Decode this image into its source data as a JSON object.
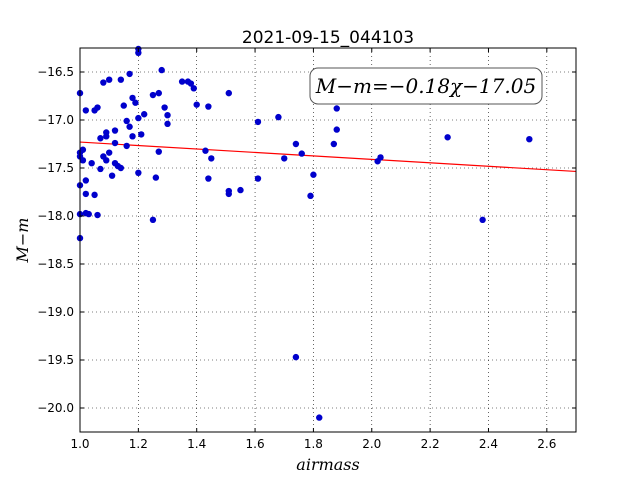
{
  "chart_data": {
    "type": "scatter",
    "title": "2021-09-15_044103",
    "xlabel": "airmass",
    "ylabel": "M−m",
    "xlim": [
      1.0,
      2.7
    ],
    "ylim": [
      -20.25,
      -16.25
    ],
    "y_inverted": true,
    "grid": true,
    "xticks": [
      1.0,
      1.2,
      1.4,
      1.6,
      1.8,
      2.0,
      2.2,
      2.4,
      2.6
    ],
    "xtick_labels": [
      "1.0",
      "1.2",
      "1.4",
      "1.6",
      "1.8",
      "2.0",
      "2.2",
      "2.4",
      "2.6"
    ],
    "yticks": [
      -16.5,
      -17.0,
      -17.5,
      -18.0,
      -18.5,
      -19.0,
      -19.5,
      -20.0
    ],
    "ytick_labels": [
      "−16.5",
      "−17.0",
      "−17.5",
      "−18.0",
      "−18.5",
      "−19.0",
      "−19.5",
      "−20.0"
    ],
    "annotation": "M−m=−0.18χ−17.05",
    "fit": {
      "slope": -0.18,
      "intercept": -17.05,
      "color": "#ff0000"
    },
    "point_color": "#0000cc",
    "points": [
      [
        1.0,
        -16.72
      ],
      [
        1.0,
        -17.34
      ],
      [
        1.0,
        -17.38
      ],
      [
        1.0,
        -17.68
      ],
      [
        1.0,
        -17.98
      ],
      [
        1.0,
        -18.23
      ],
      [
        1.01,
        -17.42
      ],
      [
        1.01,
        -17.31
      ],
      [
        1.02,
        -17.63
      ],
      [
        1.02,
        -16.9
      ],
      [
        1.02,
        -17.77
      ],
      [
        1.02,
        -17.97
      ],
      [
        1.03,
        -17.98
      ],
      [
        1.04,
        -17.45
      ],
      [
        1.05,
        -17.78
      ],
      [
        1.05,
        -16.9
      ],
      [
        1.06,
        -16.87
      ],
      [
        1.06,
        -17.99
      ],
      [
        1.07,
        -17.19
      ],
      [
        1.07,
        -17.51
      ],
      [
        1.08,
        -16.61
      ],
      [
        1.08,
        -17.38
      ],
      [
        1.09,
        -17.42
      ],
      [
        1.09,
        -17.17
      ],
      [
        1.09,
        -17.13
      ],
      [
        1.1,
        -16.58
      ],
      [
        1.1,
        -17.34
      ],
      [
        1.11,
        -17.58
      ],
      [
        1.12,
        -17.45
      ],
      [
        1.12,
        -17.11
      ],
      [
        1.12,
        -17.24
      ],
      [
        1.13,
        -17.48
      ],
      [
        1.14,
        -16.58
      ],
      [
        1.14,
        -17.5
      ],
      [
        1.15,
        -16.85
      ],
      [
        1.16,
        -17.27
      ],
      [
        1.16,
        -17.01
      ],
      [
        1.17,
        -17.07
      ],
      [
        1.17,
        -16.52
      ],
      [
        1.18,
        -16.77
      ],
      [
        1.18,
        -17.17
      ],
      [
        1.19,
        -16.82
      ],
      [
        1.2,
        -16.98
      ],
      [
        1.2,
        -17.55
      ],
      [
        1.2,
        -16.26
      ],
      [
        1.2,
        -16.3
      ],
      [
        1.21,
        -17.15
      ],
      [
        1.22,
        -16.94
      ],
      [
        1.25,
        -16.74
      ],
      [
        1.25,
        -18.04
      ],
      [
        1.26,
        -17.6
      ],
      [
        1.27,
        -17.33
      ],
      [
        1.27,
        -16.72
      ],
      [
        1.28,
        -16.48
      ],
      [
        1.29,
        -16.87
      ],
      [
        1.3,
        -17.04
      ],
      [
        1.3,
        -16.95
      ],
      [
        1.35,
        -16.6
      ],
      [
        1.37,
        -16.6
      ],
      [
        1.38,
        -16.62
      ],
      [
        1.39,
        -16.67
      ],
      [
        1.4,
        -16.84
      ],
      [
        1.43,
        -17.32
      ],
      [
        1.44,
        -16.86
      ],
      [
        1.44,
        -17.61
      ],
      [
        1.45,
        -17.4
      ],
      [
        1.51,
        -16.72
      ],
      [
        1.51,
        -17.74
      ],
      [
        1.51,
        -17.77
      ],
      [
        1.55,
        -17.73
      ],
      [
        1.61,
        -17.61
      ],
      [
        1.61,
        -17.02
      ],
      [
        1.68,
        -16.97
      ],
      [
        1.7,
        -17.4
      ],
      [
        1.74,
        -17.25
      ],
      [
        1.74,
        -19.47
      ],
      [
        1.76,
        -17.35
      ],
      [
        1.79,
        -17.79
      ],
      [
        1.8,
        -17.57
      ],
      [
        1.82,
        -20.1
      ],
      [
        1.87,
        -17.25
      ],
      [
        1.88,
        -17.1
      ],
      [
        1.88,
        -16.88
      ],
      [
        2.02,
        -17.43
      ],
      [
        2.03,
        -17.39
      ],
      [
        2.26,
        -17.18
      ],
      [
        2.38,
        -18.04
      ],
      [
        2.54,
        -17.2
      ]
    ]
  }
}
